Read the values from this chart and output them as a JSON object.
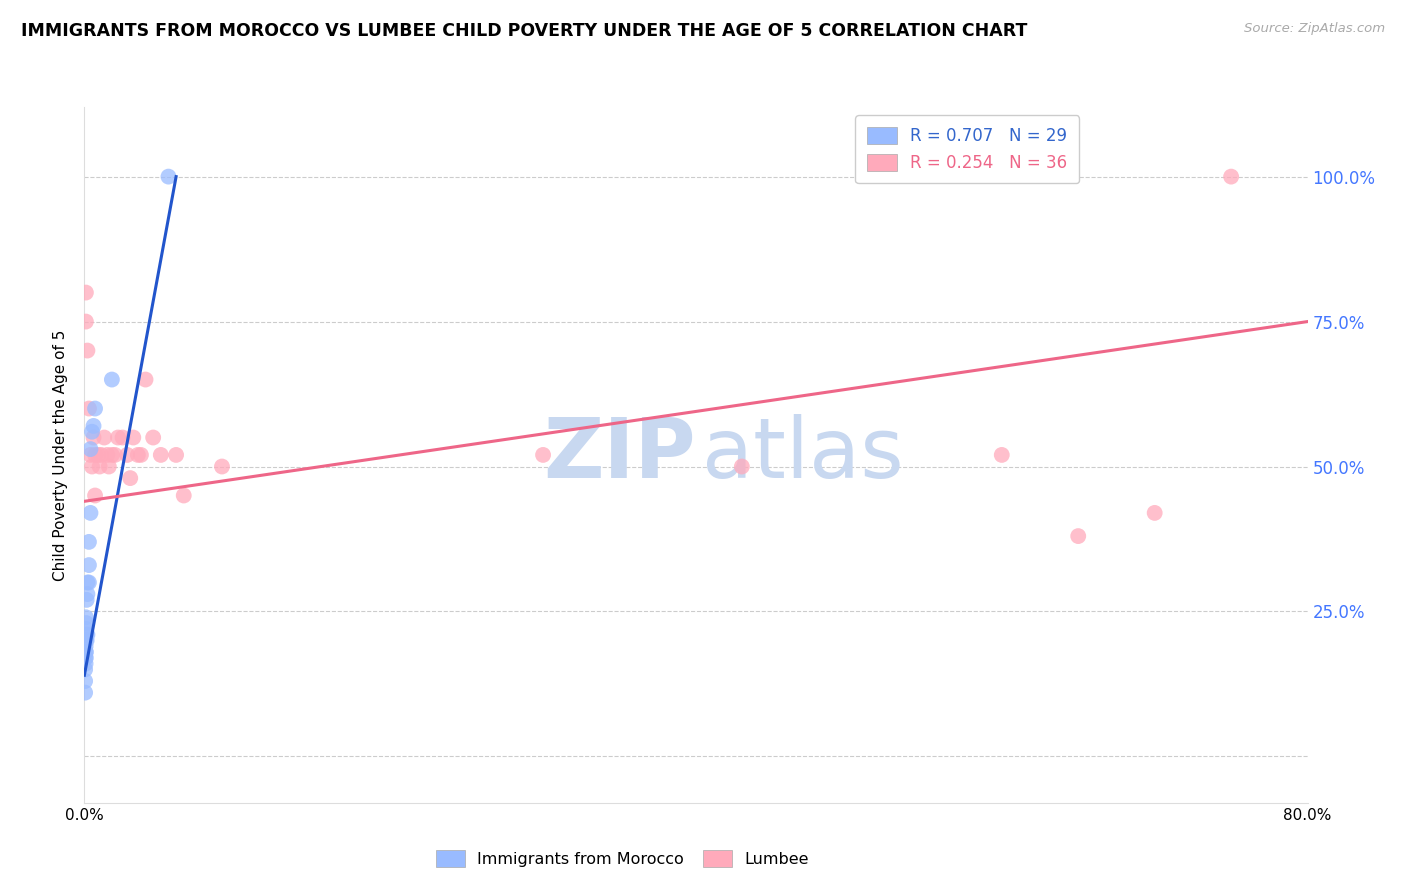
{
  "title": "IMMIGRANTS FROM MOROCCO VS LUMBEE CHILD POVERTY UNDER THE AGE OF 5 CORRELATION CHART",
  "source": "Source: ZipAtlas.com",
  "ylabel": "Child Poverty Under the Age of 5",
  "blue_color": "#99BBFF",
  "pink_color": "#FFAABB",
  "blue_line_color": "#2255CC",
  "pink_line_color": "#EE6688",
  "xlim": [
    0.0,
    0.8
  ],
  "ylim": [
    -0.08,
    1.12
  ],
  "ytick_positions": [
    0.0,
    0.25,
    0.5,
    0.75,
    1.0
  ],
  "ytick_labels": [
    "",
    "25.0%",
    "50.0%",
    "75.0%",
    "100.0%"
  ],
  "blue_scatter_x": [
    0.0005,
    0.0005,
    0.0005,
    0.0005,
    0.0008,
    0.0008,
    0.0008,
    0.001,
    0.001,
    0.001,
    0.001,
    0.001,
    0.0012,
    0.0012,
    0.0015,
    0.0015,
    0.002,
    0.002,
    0.002,
    0.003,
    0.003,
    0.003,
    0.004,
    0.004,
    0.005,
    0.006,
    0.007,
    0.018,
    0.055
  ],
  "blue_scatter_y": [
    0.17,
    0.15,
    0.13,
    0.11,
    0.19,
    0.18,
    0.16,
    0.2,
    0.18,
    0.17,
    0.22,
    0.24,
    0.21,
    0.23,
    0.2,
    0.27,
    0.21,
    0.28,
    0.3,
    0.3,
    0.33,
    0.37,
    0.42,
    0.53,
    0.56,
    0.57,
    0.6,
    0.65,
    1.0
  ],
  "pink_scatter_x": [
    0.001,
    0.001,
    0.002,
    0.003,
    0.004,
    0.005,
    0.006,
    0.007,
    0.007,
    0.009,
    0.01,
    0.011,
    0.013,
    0.015,
    0.016,
    0.018,
    0.02,
    0.022,
    0.025,
    0.028,
    0.03,
    0.032,
    0.035,
    0.037,
    0.04,
    0.045,
    0.05,
    0.06,
    0.065,
    0.09,
    0.3,
    0.43,
    0.6,
    0.65,
    0.7,
    0.75
  ],
  "pink_scatter_y": [
    0.8,
    0.75,
    0.7,
    0.6,
    0.52,
    0.5,
    0.55,
    0.52,
    0.45,
    0.52,
    0.5,
    0.52,
    0.55,
    0.52,
    0.5,
    0.52,
    0.52,
    0.55,
    0.55,
    0.52,
    0.48,
    0.55,
    0.52,
    0.52,
    0.65,
    0.55,
    0.52,
    0.52,
    0.45,
    0.5,
    0.52,
    0.5,
    0.52,
    0.38,
    0.42,
    1.0
  ],
  "blue_line_x": [
    0.0,
    0.06
  ],
  "blue_line_y": [
    0.14,
    1.0
  ],
  "pink_line_x": [
    0.0,
    0.8
  ],
  "pink_line_y": [
    0.44,
    0.75
  ],
  "legend_label1": "R = 0.707   N = 29",
  "legend_label2": "R = 0.254   N = 36",
  "legend_text_color1": "#3366CC",
  "legend_text_color2": "#EE6688",
  "bottom_legend1": "Immigrants from Morocco",
  "bottom_legend2": "Lumbee"
}
